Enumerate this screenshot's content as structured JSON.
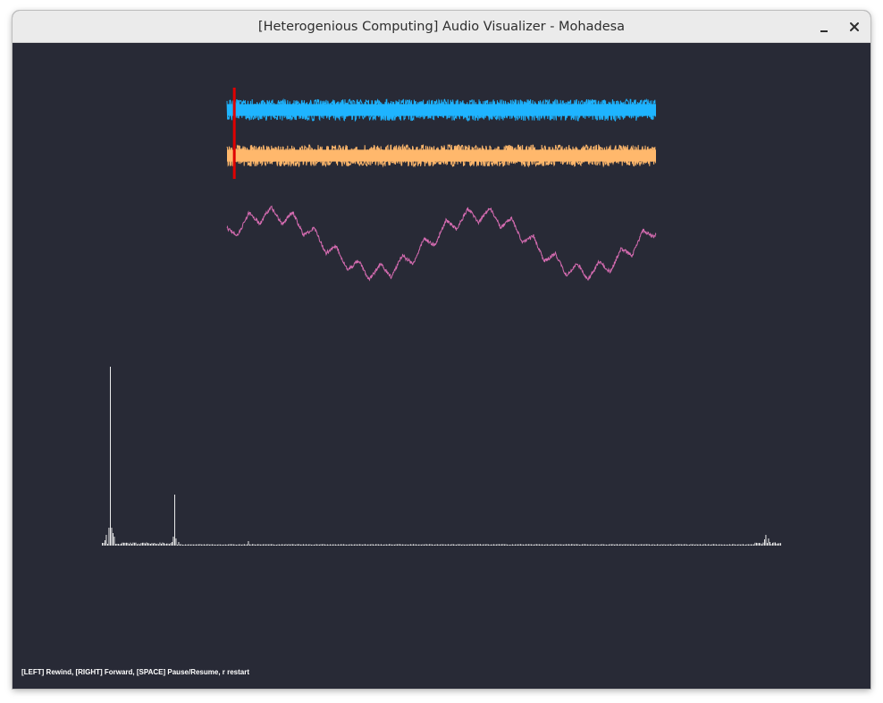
{
  "window": {
    "title": "[Heterogenious Computing] Audio Visualizer - Mohadesa",
    "minimize_icon": "minimize-icon",
    "close_icon": "close-icon"
  },
  "colors": {
    "background": "#282a36",
    "left_channel": "#1eb4ff",
    "right_channel": "#ffb86c",
    "mixed_signal": "#d46bb0",
    "playhead": "#e00000",
    "spectrum": "#ffffff"
  },
  "playback": {
    "progress": 0.017
  },
  "controls_hint": "[LEFT] Rewind, [RIGHT] Forward, [SPACE] Pause/Resume, r restart"
}
